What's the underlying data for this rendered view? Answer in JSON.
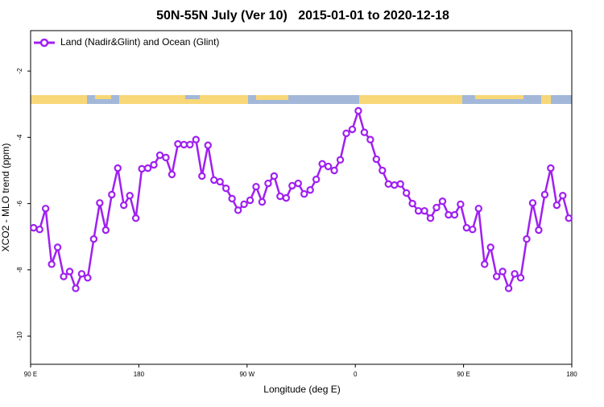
{
  "chart_data": {
    "type": "line",
    "title": "50N-55N July (Ver 10)   2015-01-01 to 2020-12-18",
    "x_label": "Longitude (deg E)",
    "y_label": "XCO2 - MLO trend (ppm)",
    "xlim": [
      90,
      540
    ],
    "xticks": [
      {
        "value": 90,
        "label": "90 E"
      },
      180,
      {
        "value": 270,
        "label": "90 W"
      },
      {
        "value": 360,
        "label": "0"
      },
      {
        "value": 450,
        "label": "90 E"
      },
      {
        "value": 540,
        "label": "180"
      }
    ],
    "ylim": [
      -10.85,
      -0.78
    ],
    "yticks": [
      -2,
      -4,
      -6,
      -8,
      -10
    ],
    "grid": false,
    "legend": "top-left",
    "x": [
      92.5,
      97.5,
      102.5,
      107.5,
      112.5,
      117.5,
      122.5,
      127.5,
      132.5,
      137.5,
      142.5,
      147.5,
      152.5,
      157.5,
      162.5,
      167.5,
      172.5,
      177.5,
      182.5,
      187.5,
      192.5,
      197.5,
      202.5,
      207.5,
      212.5,
      217.5,
      222.5,
      227.5,
      232.5,
      237.5,
      242.5,
      247.5,
      252.5,
      257.5,
      262.5,
      267.5,
      272.5,
      277.5,
      282.5,
      287.5,
      292.5,
      297.5,
      302.5,
      307.5,
      312.5,
      317.5,
      322.5,
      327.5,
      332.5,
      337.5,
      342.5,
      347.5,
      352.5,
      357.5,
      362.5,
      367.5,
      372.5,
      377.5,
      382.5,
      387.5,
      392.5,
      397.5,
      402.5,
      407.5,
      412.5,
      417.5,
      422.5,
      427.5,
      432.5,
      437.5,
      442.5,
      447.5,
      452.5,
      457.5,
      462.5,
      467.5,
      472.5,
      477.5,
      482.5,
      487.5,
      492.5,
      497.5,
      502.5,
      507.5,
      512.5,
      517.5,
      522.5,
      527.5,
      532.5,
      537.5
    ],
    "series": [
      {
        "name": "Land (Nadir&Glint) and Ocean (Glint)",
        "color": "#a020f0",
        "values": [
          -6.73,
          -6.78,
          -6.15,
          -7.83,
          -7.32,
          -8.2,
          -8.05,
          -8.56,
          -8.12,
          -8.24,
          -7.07,
          -5.98,
          -6.8,
          -5.73,
          -4.93,
          -6.05,
          -5.76,
          -6.44,
          -4.95,
          -4.93,
          -4.83,
          -4.54,
          -4.61,
          -5.12,
          -4.2,
          -4.22,
          -4.22,
          -4.07,
          -5.17,
          -4.24,
          -5.29,
          -5.34,
          -5.54,
          -5.85,
          -6.2,
          -6.02,
          -5.9,
          -5.49,
          -5.95,
          -5.39,
          -5.17,
          -5.78,
          -5.83,
          -5.46,
          -5.39,
          -5.71,
          -5.59,
          -5.27,
          -4.8,
          -4.88,
          -5.0,
          -4.68,
          -3.88,
          -3.76,
          -3.2,
          -3.85,
          -4.07,
          -4.66,
          -5.0,
          -5.41,
          -5.44,
          -5.41,
          -5.68,
          -6.0,
          -6.22,
          -6.22,
          -6.44,
          -6.12,
          -5.93,
          -6.34,
          -6.34,
          -6.02,
          -6.73,
          -6.78,
          -6.15,
          -7.83,
          -7.32,
          -8.2,
          -8.05,
          -8.56,
          -8.12,
          -8.24,
          -7.07,
          -5.98,
          -6.8,
          -5.73,
          -4.93,
          -6.05,
          -5.76,
          -6.44
        ]
      }
    ]
  }
}
